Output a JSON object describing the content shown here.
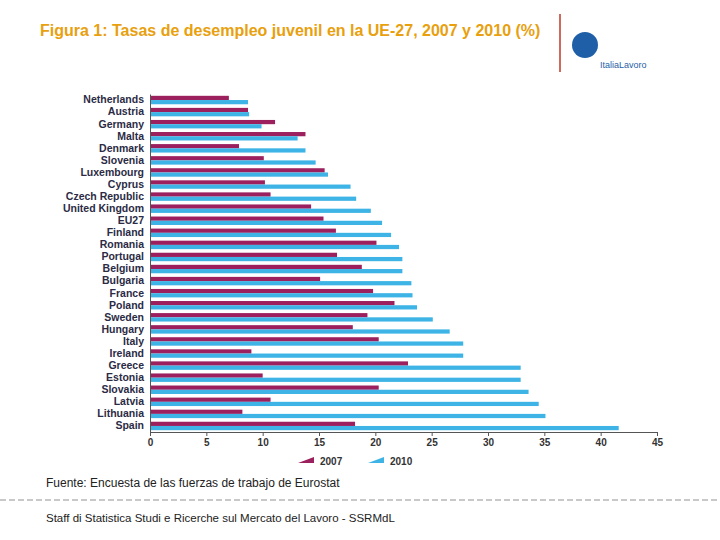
{
  "chart_data": {
    "type": "bar",
    "orientation": "horizontal",
    "title": "Figura 1: Tasas de desempleo juvenil en la UE-27, 2007 y 2010 (%)",
    "categories": [
      "Netherlands",
      "Austria",
      "Germany",
      "Malta",
      "Denmark",
      "Slovenia",
      "Luxembourg",
      "Cyprus",
      "Czech Republic",
      "United Kingdom",
      "EU27",
      "Finland",
      "Romania",
      "Portugal",
      "Belgium",
      "Bulgaria",
      "France",
      "Poland",
      "Sweden",
      "Hungary",
      "Italy",
      "Ireland",
      "Greece",
      "Estonia",
      "Slovakia",
      "Latvia",
      "Lithuania",
      "Spain"
    ],
    "series": [
      {
        "name": "2007",
        "color": "#9c1f5e",
        "values": [
          7.0,
          8.7,
          11.1,
          13.8,
          7.9,
          10.1,
          15.5,
          10.2,
          10.7,
          14.3,
          15.4,
          16.5,
          20.1,
          16.6,
          18.8,
          15.1,
          19.8,
          21.7,
          19.3,
          18.0,
          20.3,
          9.0,
          22.9,
          10.0,
          20.3,
          10.7,
          8.2,
          18.2
        ]
      },
      {
        "name": "2010",
        "color": "#3db4e5",
        "values": [
          8.7,
          8.8,
          9.9,
          13.1,
          13.8,
          14.7,
          15.8,
          17.8,
          18.3,
          19.6,
          20.6,
          21.4,
          22.1,
          22.4,
          22.4,
          23.2,
          23.3,
          23.7,
          25.1,
          26.6,
          27.8,
          27.8,
          32.9,
          32.9,
          33.6,
          34.5,
          35.1,
          41.6
        ]
      }
    ],
    "xlim": [
      0,
      45
    ],
    "xticks": [
      0,
      5,
      10,
      15,
      20,
      25,
      30,
      35,
      40,
      45
    ],
    "grid": false,
    "legend": "bottom"
  },
  "source": "Fuente: Encuesta de las fuerzas de trabajo de Eurostat",
  "footer": "Staff di Statistica Studi e Ricerche sul Mercato del Lavoro - SSRMdL",
  "logo": "ItaliaLavoro"
}
